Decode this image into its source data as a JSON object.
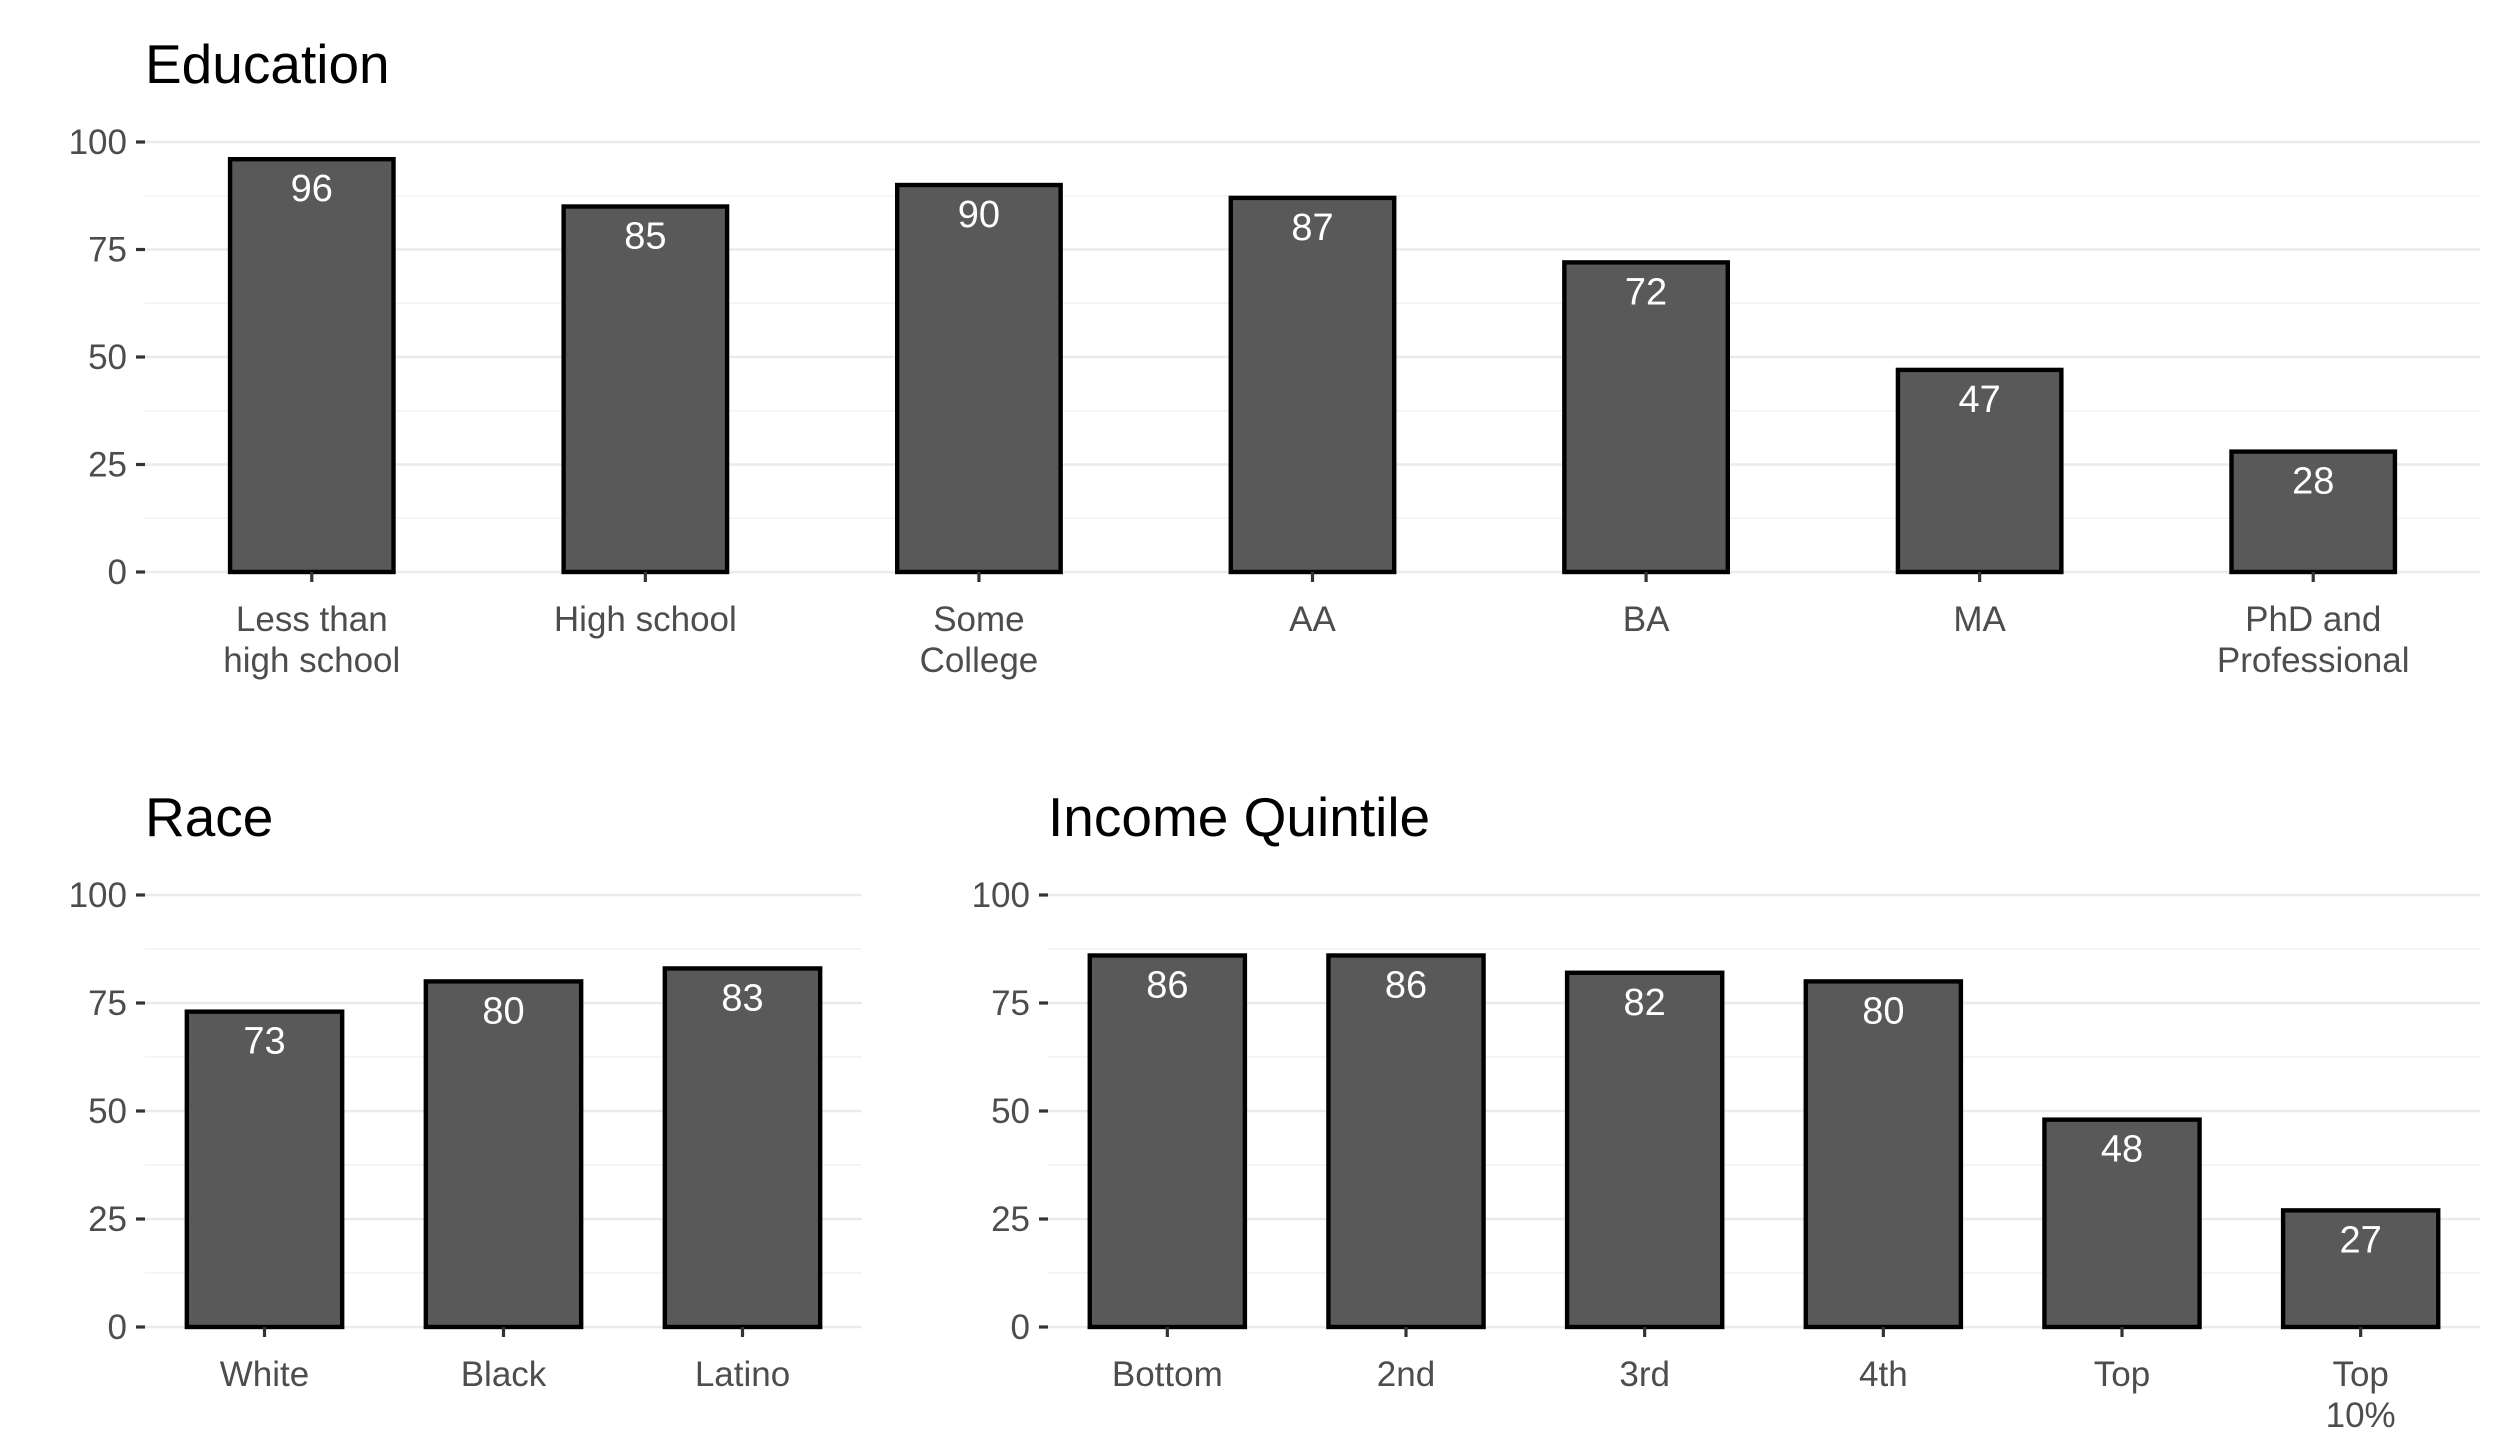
{
  "chart_data": [
    {
      "type": "bar",
      "title": "Education",
      "categories": [
        "Less than\nhigh school",
        "High school",
        "Some\nCollege",
        "AA",
        "BA",
        "MA",
        "PhD and\nProfessional"
      ],
      "values": [
        96,
        85,
        90,
        87,
        72,
        47,
        28
      ],
      "data_labels": [
        "96",
        "85",
        "90",
        "87",
        "72",
        "47",
        "28"
      ],
      "yticks": [
        "0",
        "25",
        "50",
        "75",
        "100"
      ],
      "ylim": [
        0,
        100
      ],
      "grid": true,
      "xlabel": "",
      "ylabel": ""
    },
    {
      "type": "bar",
      "title": "Race",
      "categories": [
        "White",
        "Black",
        "Latino"
      ],
      "values": [
        73,
        80,
        83
      ],
      "data_labels": [
        "73",
        "80",
        "83"
      ],
      "yticks": [
        "0",
        "25",
        "50",
        "75",
        "100"
      ],
      "ylim": [
        0,
        100
      ],
      "grid": true,
      "xlabel": "",
      "ylabel": ""
    },
    {
      "type": "bar",
      "title": "Income Quintile",
      "categories": [
        "Bottom",
        "2nd",
        "3rd",
        "4th",
        "Top",
        "Top\n10%"
      ],
      "values": [
        86,
        86,
        82,
        80,
        48,
        27
      ],
      "data_labels": [
        "86",
        "86",
        "82",
        "80",
        "48",
        "27"
      ],
      "yticks": [
        "0",
        "25",
        "50",
        "75",
        "100"
      ],
      "ylim": [
        0,
        100
      ],
      "grid": true,
      "xlabel": "",
      "ylabel": ""
    }
  ],
  "colors": {
    "bar_fill": "#595959",
    "bar_stroke": "#000000",
    "label_text": "#ffffff",
    "grid": "#ebebeb"
  }
}
